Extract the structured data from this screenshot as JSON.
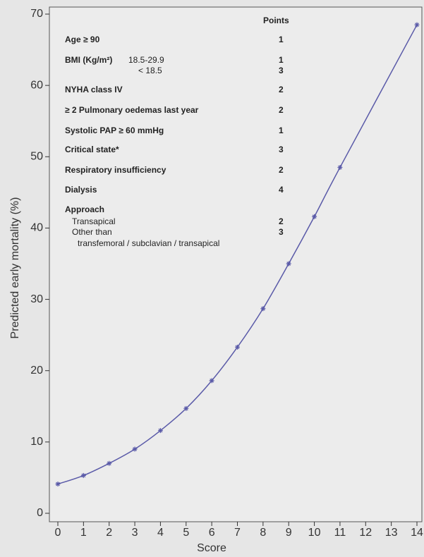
{
  "chart_data": {
    "type": "line",
    "x_label": "Score",
    "y_label": "Predicted early mortality (%)",
    "x": [
      0,
      1,
      2,
      3,
      4,
      5,
      6,
      7,
      8,
      9,
      10,
      11,
      14
    ],
    "series": [
      {
        "color": "#5a5aa8",
        "values": [
          4.1,
          5.3,
          7.0,
          9.0,
          11.6,
          14.7,
          18.6,
          23.3,
          28.7,
          35.0,
          41.6,
          48.5,
          68.5
        ]
      }
    ],
    "xlim": [
      0,
      14
    ],
    "xticks": [
      0,
      1,
      2,
      3,
      4,
      5,
      6,
      7,
      8,
      9,
      10,
      11,
      12,
      13,
      14
    ],
    "ylim": [
      0,
      70
    ],
    "yticks": [
      0,
      10,
      20,
      30,
      40,
      50,
      60,
      70
    ],
    "score_table": {
      "header": "Points",
      "rows": [
        {
          "label": "Age ≥ 90",
          "points": 1
        },
        {
          "label": "BMI (Kg/m²)",
          "options": [
            {
              "label": "18.5-29.9",
              "points": 1
            },
            {
              "label": "< 18.5",
              "points": 3
            }
          ]
        },
        {
          "label": "NYHA class IV",
          "points": 2
        },
        {
          "label": "≥ 2 Pulmonary oedemas last year",
          "points": 2
        },
        {
          "label": "Systolic PAP ≥ 60 mmHg",
          "points": 1
        },
        {
          "label": "Critical state*",
          "points": 3
        },
        {
          "label": "Respiratory insufficiency",
          "points": 2
        },
        {
          "label": "Dialysis",
          "points": 4
        },
        {
          "label": "Approach",
          "options": [
            {
              "label": "Transapical",
              "points": 2
            },
            {
              "label": "Other than",
              "detail": "transfemoral / subclavian / transapical",
              "points": 3
            }
          ]
        }
      ]
    }
  }
}
